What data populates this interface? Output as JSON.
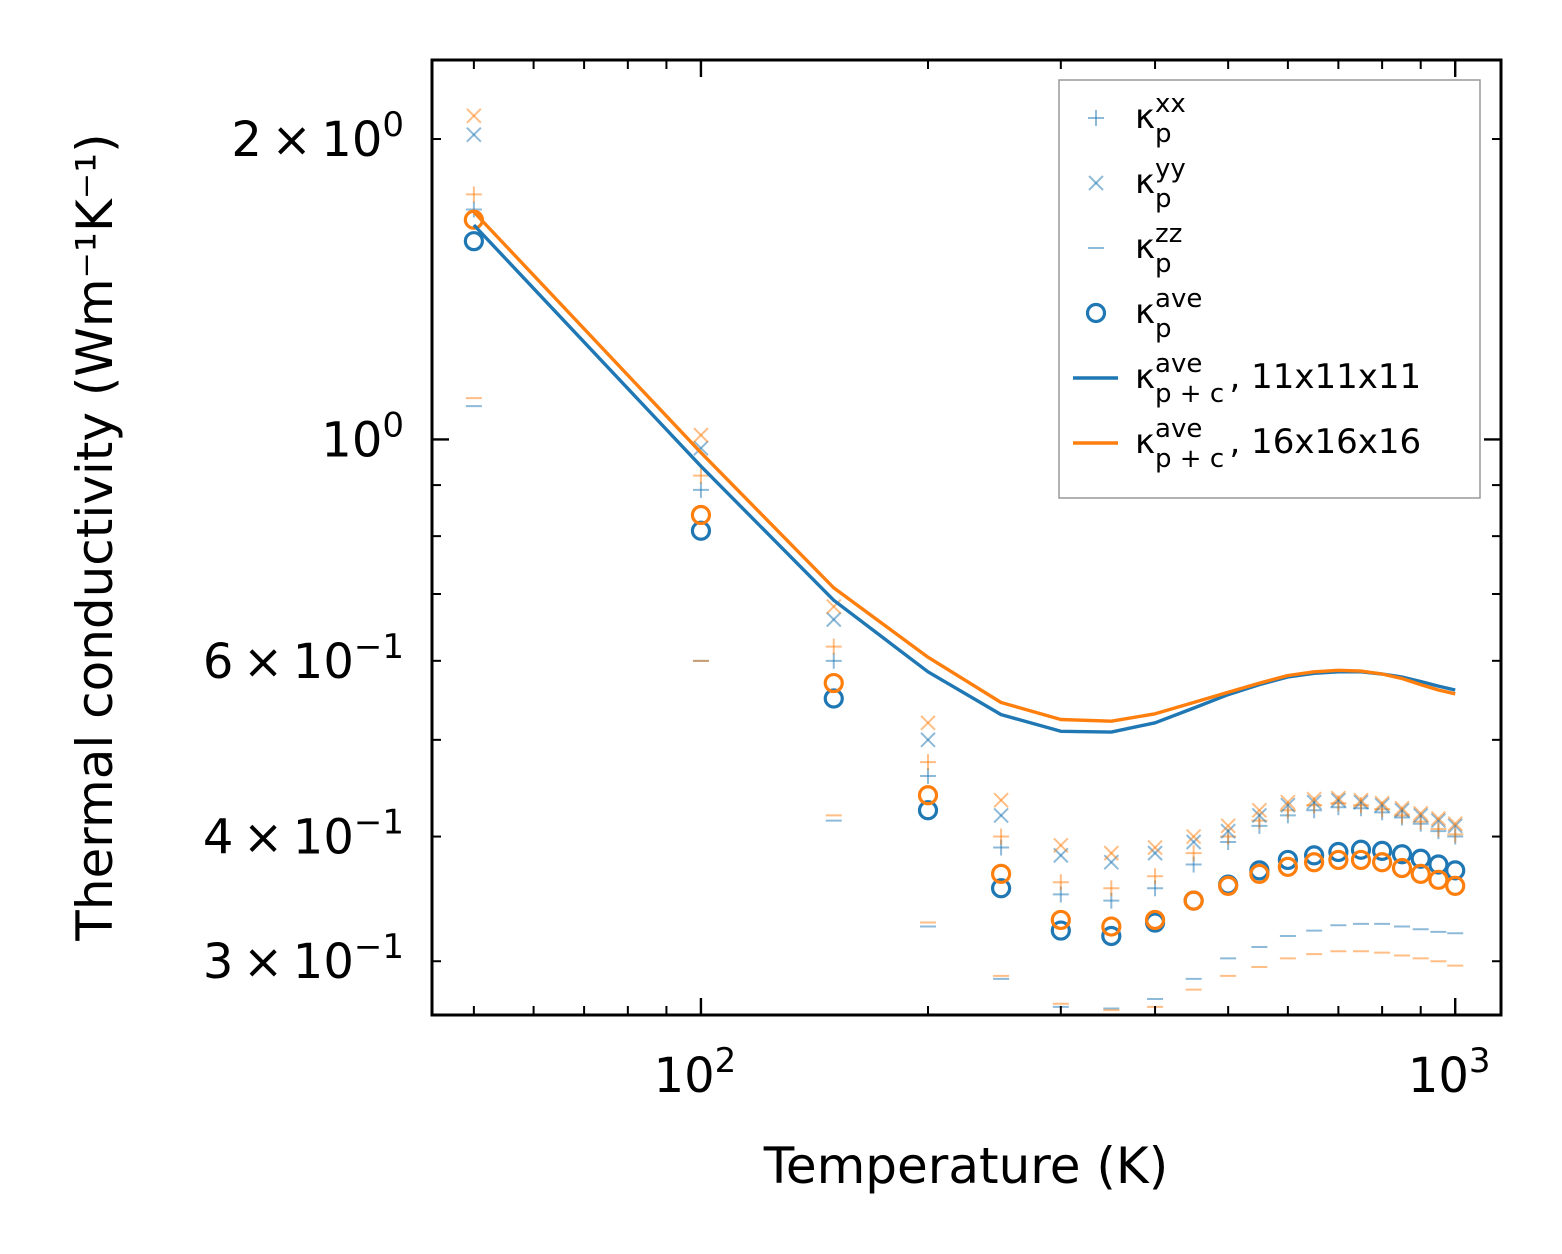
{
  "chart_data": {
    "type": "scatter",
    "xscale": "log",
    "yscale": "log",
    "xlabel": "Temperature (K)",
    "ylabel": "Thermal conductivity (Wm⁻¹K⁻¹)",
    "xlim": [
      44,
      1150
    ],
    "ylim": [
      0.265,
      2.4
    ],
    "x_ticks": [
      {
        "value": 100,
        "base": "10",
        "exp": "2"
      },
      {
        "value": 1000,
        "base": "10",
        "exp": "3"
      }
    ],
    "y_ticks": [
      {
        "value": 2.0,
        "mant": "2",
        "base": "10",
        "exp": "0"
      },
      {
        "value": 1.0,
        "mant": "",
        "base": "10",
        "exp": "0"
      },
      {
        "value": 0.6,
        "mant": "6",
        "base": "10",
        "exp": "−1"
      },
      {
        "value": 0.4,
        "mant": "4",
        "base": "10",
        "exp": "−1"
      },
      {
        "value": 0.3,
        "mant": "3",
        "base": "10",
        "exp": "−1"
      }
    ],
    "temperatures": [
      50,
      100,
      150,
      200,
      250,
      300,
      350,
      400,
      450,
      500,
      550,
      600,
      650,
      700,
      750,
      800,
      850,
      900,
      950,
      1000
    ],
    "colors": {
      "blue": "#1f77b4",
      "orange": "#ff7f0e"
    },
    "series": [
      {
        "name": "kp_xx 11x11x11",
        "marker": "plus",
        "color": "#1f77b4",
        "values": [
          1.7,
          0.89,
          0.6,
          0.46,
          0.39,
          0.35,
          0.345,
          0.355,
          0.375,
          0.395,
          0.41,
          0.42,
          0.425,
          0.428,
          0.427,
          0.423,
          0.418,
          0.412,
          0.405,
          0.4
        ]
      },
      {
        "name": "kp_xx 16x16x16",
        "marker": "plus",
        "color": "#ff7f0e",
        "values": [
          1.76,
          0.92,
          0.62,
          0.475,
          0.4,
          0.36,
          0.355,
          0.365,
          0.385,
          0.4,
          0.415,
          0.425,
          0.43,
          0.432,
          0.43,
          0.426,
          0.42,
          0.414,
          0.407,
          0.402
        ]
      },
      {
        "name": "kp_yy 11x11x11",
        "marker": "x",
        "color": "#1f77b4",
        "values": [
          2.02,
          0.98,
          0.66,
          0.5,
          0.42,
          0.383,
          0.377,
          0.385,
          0.395,
          0.405,
          0.42,
          0.43,
          0.433,
          0.435,
          0.433,
          0.43,
          0.425,
          0.42,
          0.415,
          0.41
        ]
      },
      {
        "name": "kp_yy 16x16x16",
        "marker": "x",
        "color": "#ff7f0e",
        "values": [
          2.11,
          1.01,
          0.68,
          0.52,
          0.435,
          0.392,
          0.385,
          0.39,
          0.4,
          0.41,
          0.425,
          0.433,
          0.436,
          0.437,
          0.435,
          0.432,
          0.427,
          0.422,
          0.417,
          0.412
        ]
      },
      {
        "name": "kp_zz 11x11x11",
        "marker": "dash",
        "color": "#1f77b4",
        "values": [
          1.08,
          0.6,
          0.415,
          0.325,
          0.288,
          0.27,
          0.269,
          0.275,
          0.288,
          0.302,
          0.31,
          0.318,
          0.322,
          0.326,
          0.327,
          0.327,
          0.325,
          0.323,
          0.321,
          0.32
        ]
      },
      {
        "name": "kp_zz 16x16x16",
        "marker": "dash",
        "color": "#ff7f0e",
        "values": [
          1.1,
          0.6,
          0.42,
          0.328,
          0.29,
          0.272,
          0.268,
          0.27,
          0.281,
          0.29,
          0.296,
          0.302,
          0.305,
          0.307,
          0.307,
          0.306,
          0.304,
          0.302,
          0.3,
          0.297
        ]
      },
      {
        "name": "kp_ave 11x11x11",
        "marker": "circle",
        "color": "#1f77b4",
        "values": [
          1.58,
          0.81,
          0.55,
          0.425,
          0.355,
          0.322,
          0.318,
          0.328,
          0.345,
          0.358,
          0.37,
          0.379,
          0.383,
          0.386,
          0.388,
          0.387,
          0.384,
          0.38,
          0.375,
          0.37
        ]
      },
      {
        "name": "kp_ave 16x16x16",
        "marker": "circle",
        "color": "#ff7f0e",
        "values": [
          1.66,
          0.84,
          0.57,
          0.44,
          0.367,
          0.33,
          0.325,
          0.33,
          0.345,
          0.357,
          0.367,
          0.373,
          0.377,
          0.379,
          0.379,
          0.377,
          0.372,
          0.367,
          0.362,
          0.357
        ]
      },
      {
        "name": "kp+c_ave 11x11x11",
        "marker": "line",
        "color": "#1f77b4",
        "values": [
          1.64,
          0.94,
          0.69,
          0.585,
          0.53,
          0.51,
          0.509,
          0.52,
          0.538,
          0.555,
          0.568,
          0.578,
          0.583,
          0.585,
          0.585,
          0.582,
          0.578,
          0.572,
          0.566,
          0.561
        ]
      },
      {
        "name": "kp+c_ave 16x16x16",
        "marker": "line",
        "color": "#ff7f0e",
        "values": [
          1.69,
          0.97,
          0.71,
          0.605,
          0.545,
          0.524,
          0.522,
          0.531,
          0.545,
          0.558,
          0.57,
          0.58,
          0.585,
          0.587,
          0.586,
          0.582,
          0.576,
          0.568,
          0.561,
          0.556
        ]
      }
    ],
    "legend": {
      "placement": "top-right",
      "entries": [
        {
          "marker": "plus",
          "color": "#1f77b4",
          "base": "κ",
          "sup": "xx",
          "sub": "p",
          "suffix": ""
        },
        {
          "marker": "x",
          "color": "#1f77b4",
          "base": "κ",
          "sup": "yy",
          "sub": "p",
          "suffix": ""
        },
        {
          "marker": "dash",
          "color": "#1f77b4",
          "base": "κ",
          "sup": "zz",
          "sub": "p",
          "suffix": ""
        },
        {
          "marker": "circle",
          "color": "#1f77b4",
          "base": "κ",
          "sup": "ave",
          "sub": "p",
          "suffix": ""
        },
        {
          "marker": "line",
          "color": "#1f77b4",
          "base": "κ",
          "sup": "ave",
          "sub": "p + c",
          "suffix": ", 11x11x11"
        },
        {
          "marker": "line",
          "color": "#ff7f0e",
          "base": "κ",
          "sup": "ave",
          "sub": "p + c",
          "suffix": ", 16x16x16"
        }
      ]
    }
  }
}
